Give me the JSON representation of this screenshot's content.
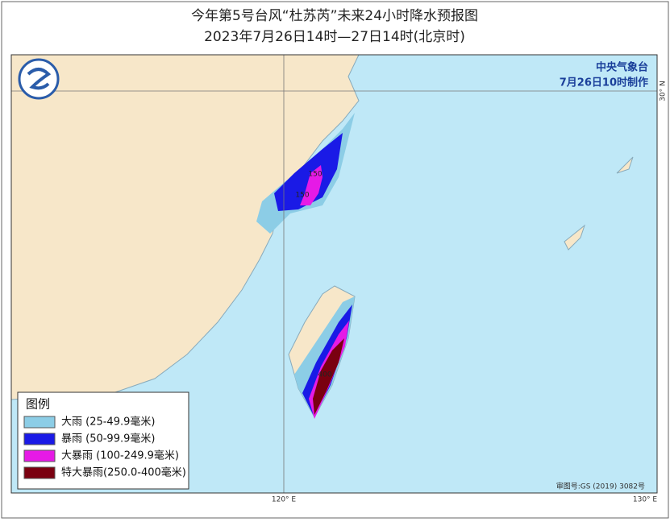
{
  "header": {
    "title": "今年第5号台风“杜苏芮”未来24小时降水预报图",
    "subtitle": "2023年7月26日14时—27日14时(北京时)"
  },
  "agency": {
    "name": "中央气象台",
    "issued": "7月26日10时制作"
  },
  "map": {
    "lat_label": "30° N",
    "lon_labels": [
      "120° E",
      "130° E"
    ],
    "contour_labels": [
      "150",
      "150",
      "400"
    ],
    "review_number": "审图号:GS (2019) 3082号"
  },
  "legend": {
    "title": "图例",
    "items": [
      {
        "label": "大雨 (25-49.9毫米)",
        "color": "#8ccde6"
      },
      {
        "label": "暴雨 (50-99.9毫米)",
        "color": "#1a1ae6"
      },
      {
        "label": "大暴雨 (100-249.9毫米)",
        "color": "#e61ae6"
      },
      {
        "label": "特大暴雨(250.0-400毫米)",
        "color": "#7a0010"
      }
    ]
  }
}
